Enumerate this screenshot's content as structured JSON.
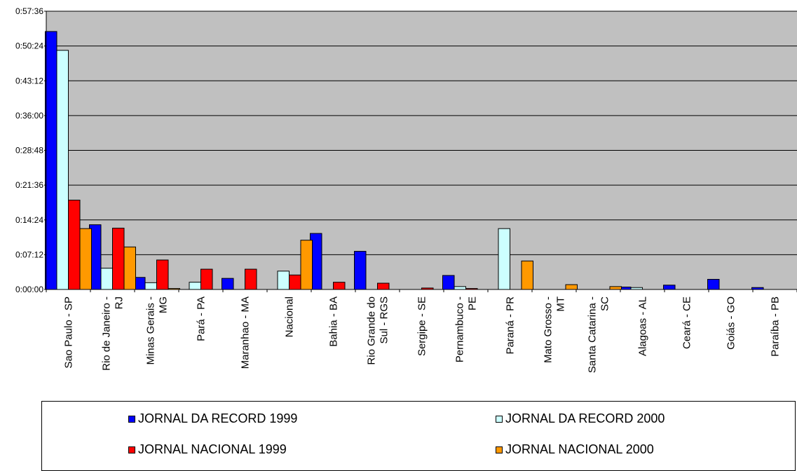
{
  "chart_data": {
    "type": "bar",
    "title": "",
    "xlabel": "",
    "ylabel": "",
    "y_unit": "minutes",
    "ylim": [
      0,
      57.6
    ],
    "y_ticks": [
      "0:00:00",
      "0:07:12",
      "0:14:24",
      "0:21:36",
      "0:28:48",
      "0:36:00",
      "0:43:12",
      "0:50:24",
      "0:57:36"
    ],
    "grid": true,
    "legend_position": "bottom",
    "plot_background": "#c0c0c0",
    "categories": [
      "Sao Paulo - SP",
      "Rio de Janeiro - RJ",
      "Minas Gerais - MG",
      "Pará - PA",
      "Maranhao - MA",
      "Nacional",
      "Bahia - BA",
      "Rio Grande do Sul - RGS",
      "Sergipe - SE",
      "Pernambuco - PE",
      "Paraná - PR",
      "Mato Grosso - MT",
      "Santa Catarina - SC",
      "Alagoas - AL",
      "Ceará - CE",
      "Goiás - GO",
      "Paraíba - PB"
    ],
    "category_lines": [
      [
        "Sao Paulo - SP"
      ],
      [
        "Rio de Janeiro -",
        "RJ"
      ],
      [
        "Minas Gerais -",
        "MG"
      ],
      [
        "Pará - PA"
      ],
      [
        "Maranhao - MA"
      ],
      [
        "Nacional"
      ],
      [
        "Bahia - BA"
      ],
      [
        "Rio Grande do",
        "Sul - RGS"
      ],
      [
        "Sergipe - SE"
      ],
      [
        "Pernambuco -",
        "PE"
      ],
      [
        "Paraná - PR"
      ],
      [
        "Mato Grosso -",
        "MT"
      ],
      [
        "Santa Catarina -",
        "SC"
      ],
      [
        "Alagoas - AL"
      ],
      [
        "Ceará - CE"
      ],
      [
        "Goiás - GO"
      ],
      [
        "Paraíba - PB"
      ]
    ],
    "series": [
      {
        "name": "JORNAL DA RECORD 1999",
        "color": "#0000ff",
        "values": [
          53.4,
          13.4,
          2.5,
          0,
          2.3,
          0,
          11.6,
          7.9,
          0,
          2.9,
          0,
          0,
          0,
          0.5,
          0.9,
          2.1,
          0.4
        ]
      },
      {
        "name": "JORNAL DA RECORD 2000",
        "color": "#ccffff",
        "values": [
          49.5,
          4.4,
          1.4,
          1.5,
          0,
          3.8,
          0,
          0,
          0,
          0.6,
          12.6,
          0,
          0,
          0.4,
          0,
          0,
          0
        ]
      },
      {
        "name": "JORNAL NACIONAL 1999",
        "color": "#ff0000",
        "values": [
          18.5,
          12.7,
          6.1,
          4.2,
          4.2,
          3.0,
          1.5,
          1.3,
          0.3,
          0.2,
          0,
          0,
          0,
          0,
          0,
          0,
          0
        ]
      },
      {
        "name": "JORNAL NACIONAL 2000",
        "color": "#ff9900",
        "values": [
          12.6,
          8.8,
          0.2,
          0,
          0,
          10.2,
          0,
          0,
          0,
          0,
          5.9,
          1.0,
          0.6,
          0,
          0,
          0,
          0
        ]
      }
    ]
  }
}
